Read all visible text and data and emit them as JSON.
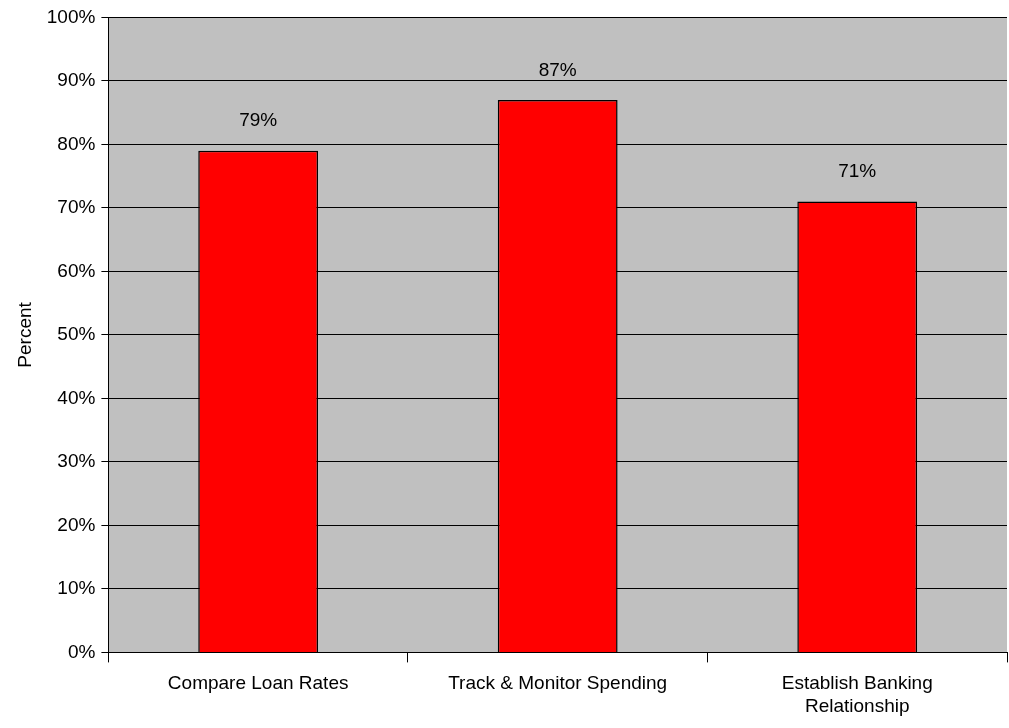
{
  "chart_data": {
    "type": "bar",
    "ylabel": "Percent",
    "categories": [
      "Compare Loan Rates",
      "Track & Monitor Spending",
      "Establish Banking Relationship"
    ],
    "values": [
      79,
      87,
      71
    ],
    "color": "#ff0000",
    "value_labels": [
      "79%",
      "87%",
      "71%"
    ],
    "ylim": [
      0,
      100
    ],
    "yticks": [
      {
        "value": 0,
        "label": "0%"
      },
      {
        "value": 10,
        "label": "10%"
      },
      {
        "value": 20,
        "label": "20%"
      },
      {
        "value": 30,
        "label": "30%"
      },
      {
        "value": 40,
        "label": "40%"
      },
      {
        "value": 50,
        "label": "50%"
      },
      {
        "value": 60,
        "label": "60%"
      },
      {
        "value": 70,
        "label": "70%"
      },
      {
        "value": 80,
        "label": "80%"
      },
      {
        "value": 90,
        "label": "90%"
      },
      {
        "value": 100,
        "label": "100%"
      }
    ],
    "grid": "y",
    "legend": false
  }
}
